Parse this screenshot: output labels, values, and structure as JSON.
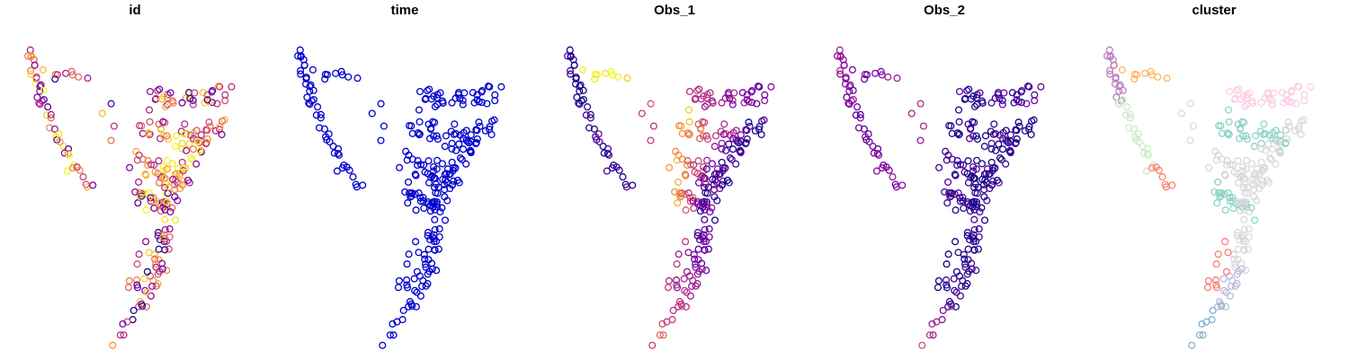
{
  "chart_data": {
    "type": "scatter",
    "grid": false,
    "axes_visible": false,
    "point_shape": "open-circle",
    "scale_note": "relative units; axes are not shown in the figure",
    "color_scale": [
      "#0d0887",
      "#7e03a8",
      "#cc4778",
      "#f89540",
      "#f0f921"
    ],
    "cluster_palette": [
      "#fb8072",
      "#bebada",
      "#8dd3c7",
      "#80b1d3",
      "#fdb462",
      "#b3de69",
      "#fccde5",
      "#d9d9d9",
      "#bc80bd",
      "#ccebc5",
      "#ffed6f",
      "#a6cee3"
    ],
    "panels": [
      {
        "title": "id",
        "coloring": "continuous",
        "palette": "mixed"
      },
      {
        "title": "time",
        "coloring": "continuous",
        "palette": "uniform",
        "uniform_color": "#0000cd"
      },
      {
        "title": "Obs_1",
        "coloring": "continuous",
        "palette": "obs1"
      },
      {
        "title": "Obs_2",
        "coloring": "continuous",
        "palette": "obs2"
      },
      {
        "title": "cluster",
        "coloring": "categorical",
        "palette": "cluster"
      }
    ],
    "shape_segments": [
      {
        "x1": 0.08,
        "y1": 0.09,
        "x2": 0.12,
        "y2": 0.23,
        "n": 18,
        "noise": 0.022,
        "obs1": [
          0.02,
          0.05
        ],
        "obs2": [
          0.35,
          0.25
        ],
        "cluster": 8,
        "id_bias": 0.65
      },
      {
        "x1": 0.12,
        "y1": 0.23,
        "x2": 0.25,
        "y2": 0.45,
        "n": 20,
        "noise": 0.02,
        "obs1": [
          0.05,
          0.08
        ],
        "obs2": [
          0.25,
          0.2
        ],
        "cluster": 9,
        "id_bias": 0.6
      },
      {
        "x1": 0.25,
        "y1": 0.45,
        "x2": 0.32,
        "y2": 0.5,
        "n": 7,
        "noise": 0.02,
        "obs1": [
          0.08,
          0.12
        ],
        "obs2": [
          0.2,
          0.3
        ],
        "cluster": 0,
        "id_bias": 0.55
      },
      {
        "x1": 0.15,
        "y1": 0.15,
        "x2": 0.3,
        "y2": 0.18,
        "n": 9,
        "noise": 0.02,
        "obs1": [
          0.9,
          0.95
        ],
        "obs2": [
          0.3,
          0.25
        ],
        "cluster": 4,
        "id_bias": 0.5
      },
      {
        "x1": 0.38,
        "y1": 0.28,
        "x2": 0.4,
        "y2": 0.35,
        "n": 4,
        "noise": 0.03,
        "obs1": [
          0.6,
          0.5
        ],
        "obs2": [
          0.5,
          0.4
        ],
        "cluster": 7,
        "id_bias": 0.5
      },
      {
        "x1": 0.56,
        "y1": 0.24,
        "x2": 0.88,
        "y2": 0.22,
        "n": 38,
        "noise": 0.03,
        "obs1": [
          0.45,
          0.2
        ],
        "obs2": [
          0.05,
          0.15
        ],
        "cluster": 6,
        "id_bias": 0.55
      },
      {
        "x1": 0.52,
        "y1": 0.3,
        "x2": 0.8,
        "y2": 0.38,
        "n": 36,
        "noise": 0.035,
        "obs1": [
          0.85,
          0.1
        ],
        "obs2": [
          0.05,
          0.1
        ],
        "cluster": 2,
        "id_bias": 0.7
      },
      {
        "x1": 0.5,
        "y1": 0.42,
        "x2": 0.7,
        "y2": 0.48,
        "n": 28,
        "noise": 0.035,
        "obs1": [
          0.85,
          0.1
        ],
        "obs2": [
          0.1,
          0.08
        ],
        "cluster": 7,
        "id_bias": 0.65
      },
      {
        "x1": 0.5,
        "y1": 0.52,
        "x2": 0.65,
        "y2": 0.58,
        "n": 24,
        "noise": 0.035,
        "obs1": [
          0.8,
          0.15
        ],
        "obs2": [
          0.15,
          0.05
        ],
        "cluster": 2,
        "id_bias": 0.6
      },
      {
        "x1": 0.62,
        "y1": 0.5,
        "x2": 0.85,
        "y2": 0.3,
        "n": 34,
        "noise": 0.035,
        "obs1": [
          0.2,
          0.05
        ],
        "obs2": [
          0.05,
          0.05
        ],
        "cluster": 7,
        "id_bias": 0.6
      },
      {
        "x1": 0.6,
        "y1": 0.58,
        "x2": 0.72,
        "y2": 0.45,
        "n": 18,
        "noise": 0.035,
        "obs1": [
          0.15,
          0.05
        ],
        "obs2": [
          0.05,
          0.05
        ],
        "cluster": 7,
        "id_bias": 0.55
      },
      {
        "x1": 0.62,
        "y1": 0.6,
        "x2": 0.6,
        "y2": 0.75,
        "n": 24,
        "noise": 0.03,
        "obs1": [
          0.1,
          0.25
        ],
        "obs2": [
          0.05,
          0.05
        ],
        "cluster": 7,
        "id_bias": 0.5
      },
      {
        "x1": 0.6,
        "y1": 0.75,
        "x2": 0.52,
        "y2": 0.87,
        "n": 16,
        "noise": 0.025,
        "obs1": [
          0.3,
          0.4
        ],
        "obs2": [
          0.05,
          0.05
        ],
        "cluster": 1,
        "id_bias": 0.5
      },
      {
        "x1": 0.55,
        "y1": 0.7,
        "x2": 0.5,
        "y2": 0.82,
        "n": 10,
        "noise": 0.03,
        "obs1": [
          0.35,
          0.4
        ],
        "obs2": [
          0.05,
          0.05
        ],
        "cluster": 0,
        "id_bias": 0.45
      },
      {
        "x1": 0.52,
        "y1": 0.87,
        "x2": 0.42,
        "y2": 0.98,
        "n": 8,
        "noise": 0.012,
        "obs1": [
          0.45,
          0.55
        ],
        "obs2": [
          0.3,
          0.45
        ],
        "cluster": 3,
        "id_bias": 0.4
      }
    ]
  }
}
